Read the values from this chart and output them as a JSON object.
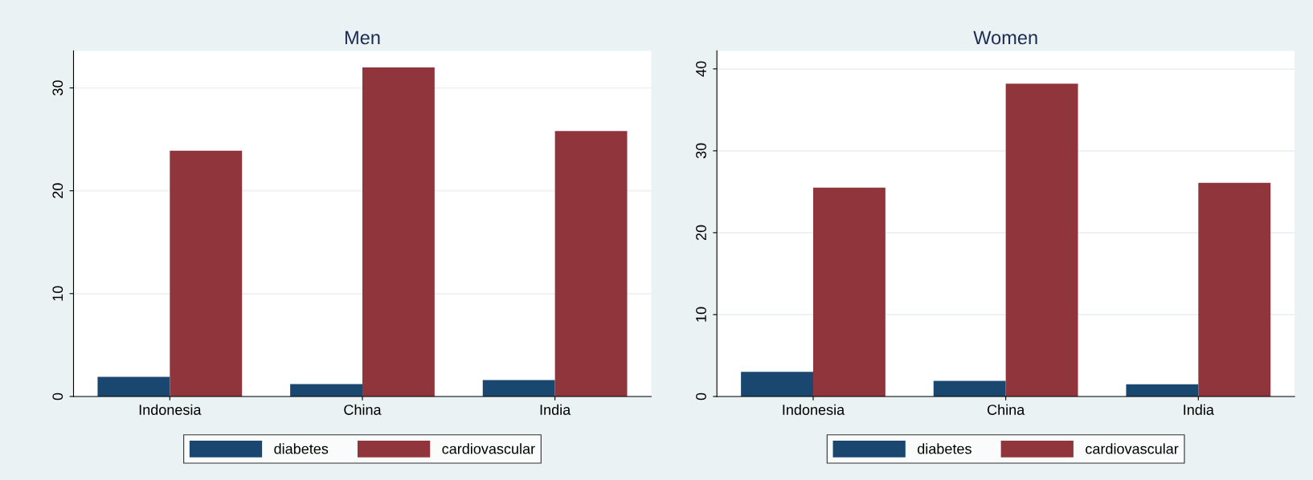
{
  "chart_data": [
    {
      "type": "bar",
      "title": "Men",
      "categories": [
        "Indonesia",
        "China",
        "India"
      ],
      "ylim": [
        0,
        33.6
      ],
      "yticks": [
        0,
        10,
        20,
        30
      ],
      "grid": "y",
      "legend": "bottom",
      "series": [
        {
          "name": "diabetes",
          "color": "#1a476f",
          "values": [
            1.9,
            1.2,
            1.6
          ]
        },
        {
          "name": "cardiovascular",
          "color": "#90353b",
          "values": [
            23.9,
            32.0,
            25.8
          ]
        }
      ]
    },
    {
      "type": "bar",
      "title": "Women",
      "categories": [
        "Indonesia",
        "China",
        "India"
      ],
      "ylim": [
        0,
        42.2
      ],
      "yticks": [
        0,
        10,
        20,
        30,
        40
      ],
      "grid": "y",
      "legend": "bottom",
      "series": [
        {
          "name": "diabetes",
          "color": "#1a476f",
          "values": [
            3.0,
            1.9,
            1.5
          ]
        },
        {
          "name": "cardiovascular",
          "color": "#90353b",
          "values": [
            25.5,
            38.2,
            26.1
          ]
        }
      ]
    }
  ]
}
